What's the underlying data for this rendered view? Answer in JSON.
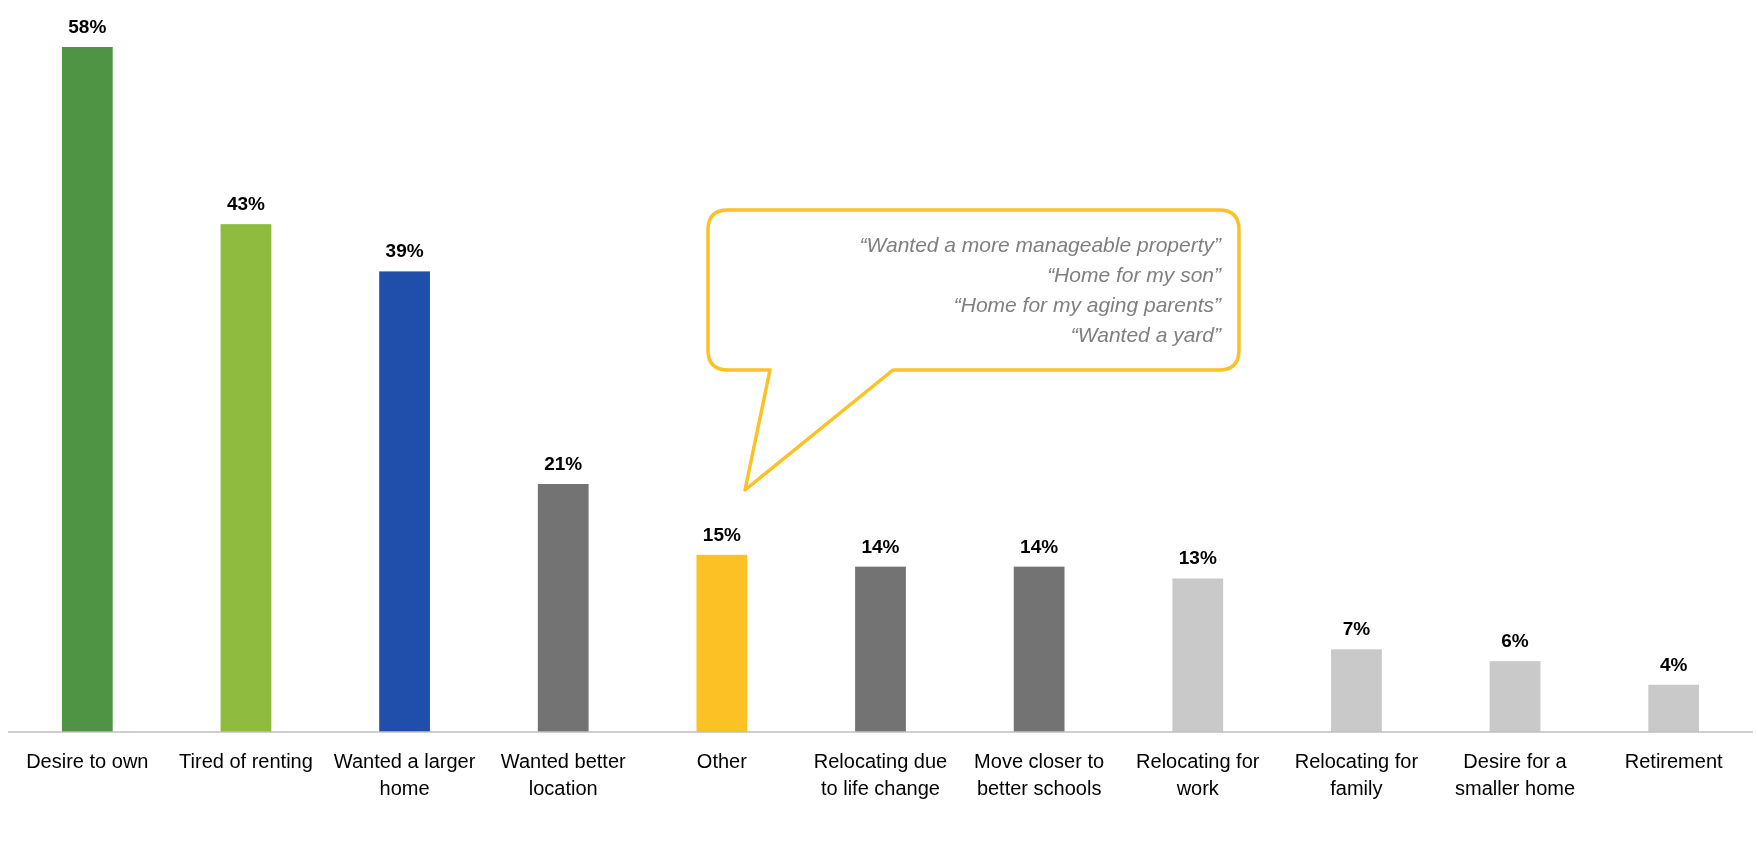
{
  "chart_data": {
    "type": "bar",
    "categories": [
      "Desire to own",
      "Tired of renting",
      "Wanted a larger home",
      "Wanted better location",
      "Other",
      "Relocating due to life change",
      "Move closer to better schools",
      "Relocating for work",
      "Relocating for family",
      "Desire for a smaller home",
      "Retirement"
    ],
    "values": [
      58,
      43,
      39,
      21,
      15,
      14,
      14,
      13,
      7,
      6,
      4
    ],
    "colors": [
      "#4e9444",
      "#8fbb3e",
      "#1f4faa",
      "#737373",
      "#fcc124",
      "#737373",
      "#737373",
      "#c9c9c9",
      "#c9c9c9",
      "#c9c9c9",
      "#c9c9c9"
    ],
    "value_labels": [
      "58%",
      "43%",
      "39%",
      "21%",
      "15%",
      "14%",
      "14%",
      "13%",
      "7%",
      "6%",
      "4%"
    ],
    "annotations": [
      "“Wanted a more manageable property”",
      "“Home for my son”",
      "“Home for my aging parents”",
      "“Wanted a yard”"
    ]
  }
}
